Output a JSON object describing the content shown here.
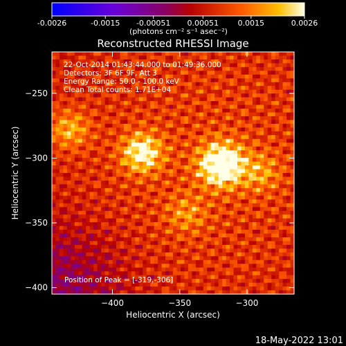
{
  "colorbar": {
    "ticks": [
      "-0.0026",
      "-0.0015",
      "-0.00051",
      "0.00051",
      "0.0015",
      "0.0026"
    ],
    "units": "(photons cm⁻² s⁻¹ asec⁻²)"
  },
  "info": {
    "time": "22-Oct-2014 01:43:44.000 to 01:49:36.000",
    "detectors": "Detectors: 3F 6F 9F, Att 3",
    "energy": "Energy Range: 50.0 - 100.0 keV",
    "clean": "Clean     Total counts: 1.71E+04",
    "peak": "Position of Peak = [-319,-306]"
  },
  "footer": {
    "timestamp": "18-May-2022 13:01"
  },
  "chart_data": {
    "type": "heatmap",
    "title": "Reconstructed RHESSI Image",
    "xlabel": "Heliocentric X (arcsec)",
    "ylabel": "Heliocentric Y (arcsec)",
    "xlim": [
      -445,
      -265
    ],
    "ylim": [
      -405,
      -218
    ],
    "xticks": [
      -400,
      -350,
      -300
    ],
    "yticks": [
      -250,
      -300,
      -350,
      -400
    ],
    "zlim": [
      -0.0026,
      0.0026
    ],
    "peak": {
      "x": -319,
      "y": -306
    },
    "sources": [
      {
        "x": -319,
        "y": -305,
        "flux": 0.0026
      },
      {
        "x": -378,
        "y": -296,
        "flux": 0.0019
      },
      {
        "x": -432,
        "y": -278,
        "flux": 0.0012
      },
      {
        "x": -290,
        "y": -311,
        "flux": 0.0009
      },
      {
        "x": -345,
        "y": -343,
        "flux": 0.0008
      }
    ]
  }
}
